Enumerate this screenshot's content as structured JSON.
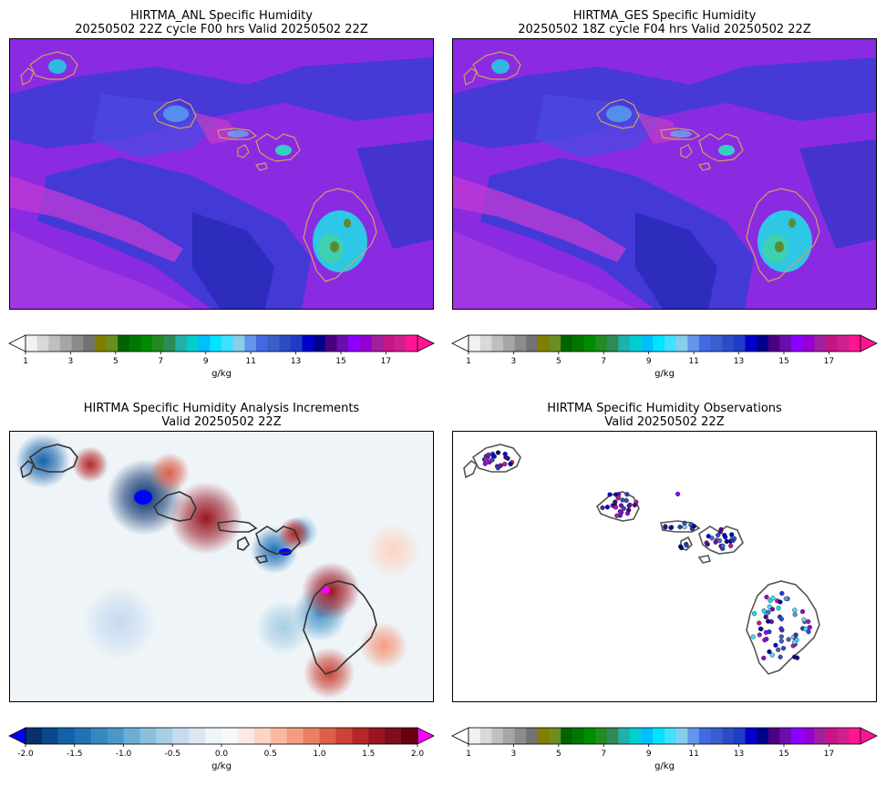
{
  "panels": [
    {
      "title_line1": "HIRTMA_ANL Specific Humidity",
      "title_line2": "20250502 22Z cycle F00 hrs Valid 20250502 22Z",
      "field": "humidity",
      "colorbar": {
        "ticks": [
          "1",
          "3",
          "5",
          "7",
          "9",
          "11",
          "13",
          "15",
          "17"
        ],
        "units": "g/kg",
        "palette": "humidity"
      }
    },
    {
      "title_line1": "HIRTMA_GES Specific Humidity",
      "title_line2": "20250502 18Z cycle F04 hrs Valid 20250502 22Z",
      "field": "humidity",
      "colorbar": {
        "ticks": [
          "1",
          "3",
          "5",
          "7",
          "9",
          "11",
          "13",
          "15",
          "17"
        ],
        "units": "g/kg",
        "palette": "humidity"
      }
    },
    {
      "title_line1": "HIRTMA Specific Humidity Analysis Increments",
      "title_line2": "Valid 20250502 22Z",
      "field": "increment",
      "colorbar": {
        "ticks": [
          "-2.0",
          "-1.5",
          "-1.0",
          "-0.5",
          "0.0",
          "0.5",
          "1.0",
          "1.5",
          "2.0"
        ],
        "units": "g/kg",
        "palette": "diverging"
      }
    },
    {
      "title_line1": "HIRTMA Specific Humidity Observations",
      "title_line2": "Valid 20250502 22Z",
      "field": "observations",
      "colorbar": {
        "ticks": [
          "1",
          "3",
          "5",
          "7",
          "9",
          "11",
          "13",
          "15",
          "17"
        ],
        "units": "g/kg",
        "palette": "humidity"
      }
    }
  ],
  "palettes": {
    "humidity": [
      "#f2f2f2",
      "#d9d9d9",
      "#bfbfbf",
      "#a6a6a6",
      "#8c8c8c",
      "#737373",
      "#808000",
      "#6b8e23",
      "#006400",
      "#007800",
      "#008c00",
      "#228b22",
      "#2e8b57",
      "#20b2aa",
      "#00ced1",
      "#00bfff",
      "#00e5ff",
      "#40e0ff",
      "#87ceeb",
      "#6495ed",
      "#4169e1",
      "#3a5fcd",
      "#2e4bc6",
      "#1e3cc8",
      "#0000cd",
      "#00008b",
      "#4b0082",
      "#6a0dad",
      "#8b00ff",
      "#9400d3",
      "#a020a0",
      "#c71585",
      "#d0208e",
      "#ff1493"
    ],
    "humidity_under": "#ffffff",
    "humidity_over": "#ff1493",
    "diverging": [
      "#08306b",
      "#0b4a8a",
      "#1461a8",
      "#2171b5",
      "#3787c0",
      "#4a98c9",
      "#6aaed6",
      "#89bfdd",
      "#a6cee4",
      "#c6dbef",
      "#dbe8f3",
      "#eef4f8",
      "#f7f7f7",
      "#fbeae3",
      "#fcd5c5",
      "#fbb8a0",
      "#f59c80",
      "#eb7f63",
      "#dc5f4b",
      "#cb4335",
      "#b42727",
      "#9a1522",
      "#7f0d1c",
      "#67000d"
    ],
    "diverging_under": "#0000ff",
    "diverging_over": "#ff00ff"
  },
  "colors": {
    "humidity_background": "#8a2be2",
    "coastline": "#4d4d4d"
  },
  "observations_colorscale": {
    "vmin": 1,
    "vmax": 18
  }
}
